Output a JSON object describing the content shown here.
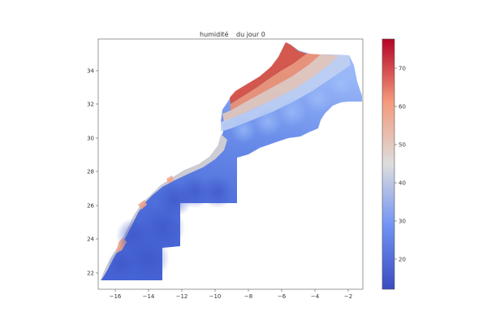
{
  "title": {
    "part1": "humidité",
    "part2": "du jour 0"
  },
  "map": {
    "x_ticks": [
      "−16",
      "−14",
      "−12",
      "−10",
      "−8",
      "−6",
      "−4",
      "−2"
    ],
    "y_ticks": [
      "22",
      "24",
      "26",
      "28",
      "30",
      "32",
      "34"
    ]
  },
  "colorbar": {
    "ticks": [
      "20",
      "30",
      "40",
      "50",
      "60",
      "70"
    ],
    "colormap": "coolwarm",
    "colors": {
      "low": "#3b4cc0",
      "mid": "#dddddd",
      "high": "#b40426"
    }
  },
  "chart_data": {
    "type": "heatmap",
    "title": "humidité        du jour 0",
    "xlabel": "",
    "ylabel": "",
    "xlim": [
      -17,
      -1
    ],
    "ylim": [
      21.3,
      35.8
    ],
    "colorbar_range": [
      11,
      78
    ],
    "colormap": "coolwarm",
    "note_values": {
      "north_coast_max": 75,
      "interior_typical": 30,
      "southern_interior_min": 15
    }
  }
}
